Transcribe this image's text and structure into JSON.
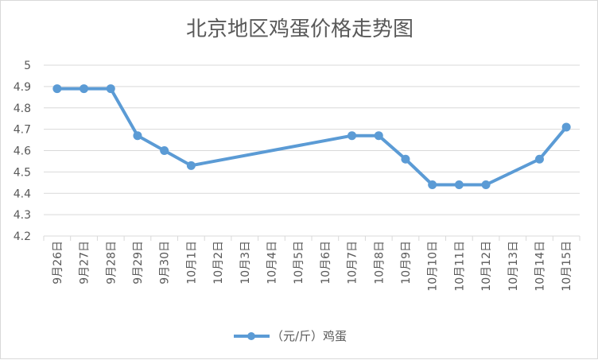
{
  "chart_data": {
    "type": "line",
    "title": "北京地区鸡蛋价格走势图",
    "xlabel": "",
    "ylabel": "",
    "categories": [
      "9月26日",
      "9月27日",
      "9月28日",
      "9月29日",
      "9月30日",
      "10月1日",
      "10月2日",
      "10月3日",
      "10月4日",
      "10月5日",
      "10月6日",
      "10月7日",
      "10月8日",
      "10月9日",
      "10月10日",
      "10月11日",
      "10月12日",
      "10月13日",
      "10月14日",
      "10月15日"
    ],
    "series": [
      {
        "name": "（元/斤）鸡蛋",
        "color": "#5b9bd5",
        "values": [
          4.89,
          4.89,
          4.89,
          4.67,
          4.6,
          4.53,
          null,
          null,
          null,
          null,
          null,
          4.67,
          4.67,
          4.56,
          4.44,
          4.44,
          4.44,
          null,
          4.56,
          4.71
        ]
      }
    ],
    "ylim": [
      4.2,
      5.0
    ],
    "yticks": [
      "4.2",
      "4.3",
      "4.4",
      "4.5",
      "4.6",
      "4.7",
      "4.8",
      "4.9",
      "5"
    ],
    "grid": true,
    "legend_position": "bottom"
  }
}
